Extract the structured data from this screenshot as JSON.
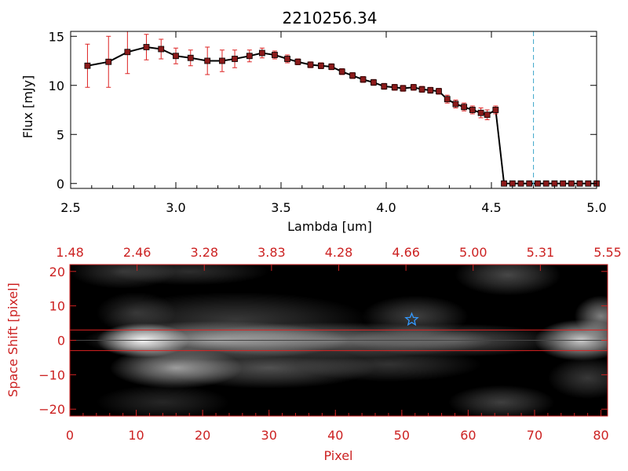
{
  "colors": {
    "axis_top": "#000000",
    "axis_bottom": "#cc2222",
    "flux_line": "#000000",
    "flux_marker": "#8b1a1a",
    "error_bar": "#dd2222",
    "cutoff_line": "#3aa6c9",
    "band_line": "#dd2222",
    "star_marker": "#3399ff"
  },
  "chart_data": [
    {
      "type": "line",
      "title": "2210256.34",
      "xlabel": "Lambda [um]",
      "ylabel": "Flux [mJy]",
      "xlim": [
        2.5,
        5.0
      ],
      "ylim": [
        -0.5,
        15.5
      ],
      "xticks": [
        2.5,
        3.0,
        3.5,
        4.0,
        4.5,
        5.0
      ],
      "xtick_labels": [
        "2.5",
        "3.0",
        "3.5",
        "4.0",
        "4.5",
        "5.0"
      ],
      "yticks": [
        0,
        5,
        10,
        15
      ],
      "ytick_labels": [
        "0",
        "5",
        "10",
        "15"
      ],
      "grid": false,
      "cutoff_line_x": 4.7,
      "series": [
        {
          "x": [
            2.58,
            2.68,
            2.77,
            2.86,
            2.93,
            3.0,
            3.07,
            3.15,
            3.22,
            3.28,
            3.35,
            3.41,
            3.47,
            3.53,
            3.58,
            3.64,
            3.69,
            3.74,
            3.79,
            3.84,
            3.89,
            3.94,
            3.99,
            4.04,
            4.08,
            4.13,
            4.17,
            4.21,
            4.25,
            4.29,
            4.33,
            4.37,
            4.41,
            4.45,
            4.48,
            4.52,
            4.56,
            4.6,
            4.64,
            4.68,
            4.72,
            4.76,
            4.8,
            4.84,
            4.88,
            4.92,
            4.96,
            5.0
          ],
          "y": [
            12.0,
            12.4,
            13.4,
            13.9,
            13.7,
            13.0,
            12.8,
            12.5,
            12.5,
            12.7,
            13.0,
            13.3,
            13.1,
            12.7,
            12.4,
            12.1,
            12.0,
            11.9,
            11.4,
            11.0,
            10.6,
            10.3,
            9.9,
            9.8,
            9.7,
            9.8,
            9.6,
            9.5,
            9.4,
            8.6,
            8.1,
            7.8,
            7.5,
            7.2,
            7.0,
            7.5,
            0,
            0,
            0,
            0,
            0,
            0,
            0,
            0,
            0,
            0,
            0,
            0
          ],
          "yerr": [
            2.2,
            2.6,
            2.2,
            1.3,
            1.0,
            0.8,
            0.8,
            1.4,
            1.1,
            0.9,
            0.6,
            0.5,
            0.4,
            0.4,
            0.3,
            0.3,
            0.3,
            0.3,
            0.3,
            0.3,
            0.3,
            0.3,
            0.3,
            0.3,
            0.3,
            0.3,
            0.3,
            0.3,
            0.3,
            0.4,
            0.4,
            0.4,
            0.4,
            0.5,
            0.5,
            0.4,
            0,
            0,
            0,
            0,
            0,
            0,
            0,
            0,
            0,
            0,
            0,
            0
          ]
        }
      ]
    },
    {
      "type": "heatmap",
      "xlabel": "Pixel",
      "ylabel": "Space Shift [pixel]",
      "xlim": [
        0,
        81
      ],
      "ylim": [
        -22,
        22
      ],
      "xticks": [
        0,
        10,
        20,
        30,
        40,
        50,
        60,
        70,
        80
      ],
      "xtick_labels": [
        "0",
        "10",
        "20",
        "30",
        "40",
        "50",
        "60",
        "70",
        "80"
      ],
      "yticks": [
        -20,
        -10,
        0,
        10,
        20
      ],
      "ytick_labels": [
        "−20",
        "−10",
        "0",
        "10",
        "20"
      ],
      "top_axis_labels": [
        "1.48",
        "2.46",
        "3.28",
        "3.83",
        "4.28",
        "4.66",
        "5.00",
        "5.31",
        "5.55"
      ],
      "band_lines_y": [
        3,
        -3
      ],
      "center_line_y": 0,
      "star_marker": {
        "x": 51.5,
        "y": 6
      },
      "blobs": [
        {
          "x": 11,
          "y": 0,
          "sx": 3.5,
          "sy": 2.5,
          "a": 0.95
        },
        {
          "x": 22,
          "y": 0,
          "sx": 10,
          "sy": 2.8,
          "a": 0.55
        },
        {
          "x": 40,
          "y": 0,
          "sx": 12,
          "sy": 2.6,
          "a": 0.45
        },
        {
          "x": 58,
          "y": 0,
          "sx": 8,
          "sy": 2.4,
          "a": 0.32
        },
        {
          "x": 77,
          "y": 0,
          "sx": 3.5,
          "sy": 3,
          "a": 0.8
        },
        {
          "x": 16,
          "y": -8,
          "sx": 5,
          "sy": 3,
          "a": 0.6
        },
        {
          "x": 30,
          "y": -8,
          "sx": 8,
          "sy": 3,
          "a": 0.32
        },
        {
          "x": 48,
          "y": -7,
          "sx": 7,
          "sy": 2.5,
          "a": 0.2
        },
        {
          "x": 25,
          "y": 6,
          "sx": 10,
          "sy": 4,
          "a": 0.22
        },
        {
          "x": 52,
          "y": 7,
          "sx": 4,
          "sy": 3,
          "a": 0.25
        },
        {
          "x": 10,
          "y": 8,
          "sx": 3,
          "sy": 3,
          "a": 0.18
        },
        {
          "x": 8,
          "y": 20,
          "sx": 4,
          "sy": 2.5,
          "a": 0.2
        },
        {
          "x": 18,
          "y": 20,
          "sx": 6,
          "sy": 2,
          "a": 0.18
        },
        {
          "x": 66,
          "y": 19,
          "sx": 4,
          "sy": 3,
          "a": 0.28
        },
        {
          "x": 80,
          "y": 7,
          "sx": 2,
          "sy": 3,
          "a": 0.5
        },
        {
          "x": 78,
          "y": -11,
          "sx": 3,
          "sy": 3,
          "a": 0.22
        },
        {
          "x": 65,
          "y": -18,
          "sx": 4,
          "sy": 2.5,
          "a": 0.25
        },
        {
          "x": 14,
          "y": -18,
          "sx": 5,
          "sy": 2.5,
          "a": 0.15
        }
      ]
    }
  ]
}
